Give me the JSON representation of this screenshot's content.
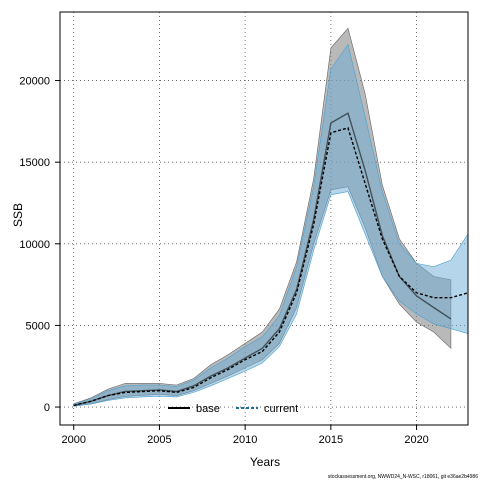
{
  "chart_data": {
    "type": "line",
    "xlabel": "Years",
    "ylabel": "SSB",
    "xlim": [
      1999.2,
      2023
    ],
    "ylim": [
      -1100,
      24200
    ],
    "x_ticks": [
      2000,
      2005,
      2010,
      2015,
      2020
    ],
    "y_ticks": [
      0,
      5000,
      10000,
      15000,
      20000
    ],
    "grid": true,
    "grid_style": "dotted",
    "legend_position": "bottom-center",
    "footnote": "stockassessment.org, NWWD24_N-WSC, r18061, git e36ae2b4986",
    "colors": {
      "base_line": "#000000",
      "base_band": "#7f7f7f",
      "current_line": "#000000",
      "current_band": "#6baed6",
      "current_legend": "#1f6f9c"
    },
    "series": [
      {
        "name": "base",
        "line_style": "solid",
        "x": [
          2000,
          2001,
          2002,
          2003,
          2004,
          2005,
          2006,
          2007,
          2008,
          2009,
          2010,
          2011,
          2012,
          2013,
          2014,
          2015,
          2016,
          2017,
          2018,
          2019,
          2020,
          2021,
          2022
        ],
        "values": [
          100,
          350,
          700,
          950,
          1000,
          1050,
          950,
          1300,
          1900,
          2400,
          3000,
          3600,
          4800,
          7200,
          11500,
          17400,
          18000,
          14500,
          10500,
          8000,
          6800,
          6100,
          5400
        ],
        "lower": [
          50,
          200,
          450,
          650,
          720,
          780,
          700,
          1000,
          1450,
          1900,
          2400,
          2900,
          3900,
          6100,
          10000,
          13300,
          13500,
          11000,
          8000,
          6300,
          5200,
          4600,
          3600
        ],
        "upper": [
          200,
          560,
          1100,
          1450,
          1450,
          1450,
          1350,
          1750,
          2600,
          3200,
          3900,
          4600,
          6000,
          8900,
          14000,
          22000,
          23200,
          19200,
          13600,
          10300,
          8800,
          8000,
          7800
        ]
      },
      {
        "name": "current",
        "line_style": "dashed",
        "x": [
          2000,
          2001,
          2002,
          2003,
          2004,
          2005,
          2006,
          2007,
          2008,
          2009,
          2010,
          2011,
          2012,
          2013,
          2014,
          2015,
          2016,
          2017,
          2018,
          2019,
          2020,
          2021,
          2022,
          2023
        ],
        "values": [
          100,
          350,
          700,
          900,
          950,
          1000,
          900,
          1200,
          1800,
          2300,
          2900,
          3400,
          4600,
          7000,
          11200,
          16800,
          17100,
          13700,
          10300,
          8000,
          7000,
          6700,
          6700,
          7000
        ],
        "lower": [
          50,
          180,
          400,
          560,
          620,
          660,
          620,
          900,
          1300,
          1750,
          2200,
          2700,
          3700,
          5700,
          9600,
          13000,
          13200,
          10600,
          8000,
          6500,
          5700,
          5100,
          4800,
          4500
        ],
        "upper": [
          180,
          500,
          1000,
          1300,
          1350,
          1350,
          1250,
          1650,
          2400,
          3000,
          3700,
          4300,
          5600,
          8600,
          13500,
          20700,
          22200,
          17800,
          13200,
          10000,
          8800,
          8600,
          9000,
          10600
        ]
      }
    ]
  }
}
